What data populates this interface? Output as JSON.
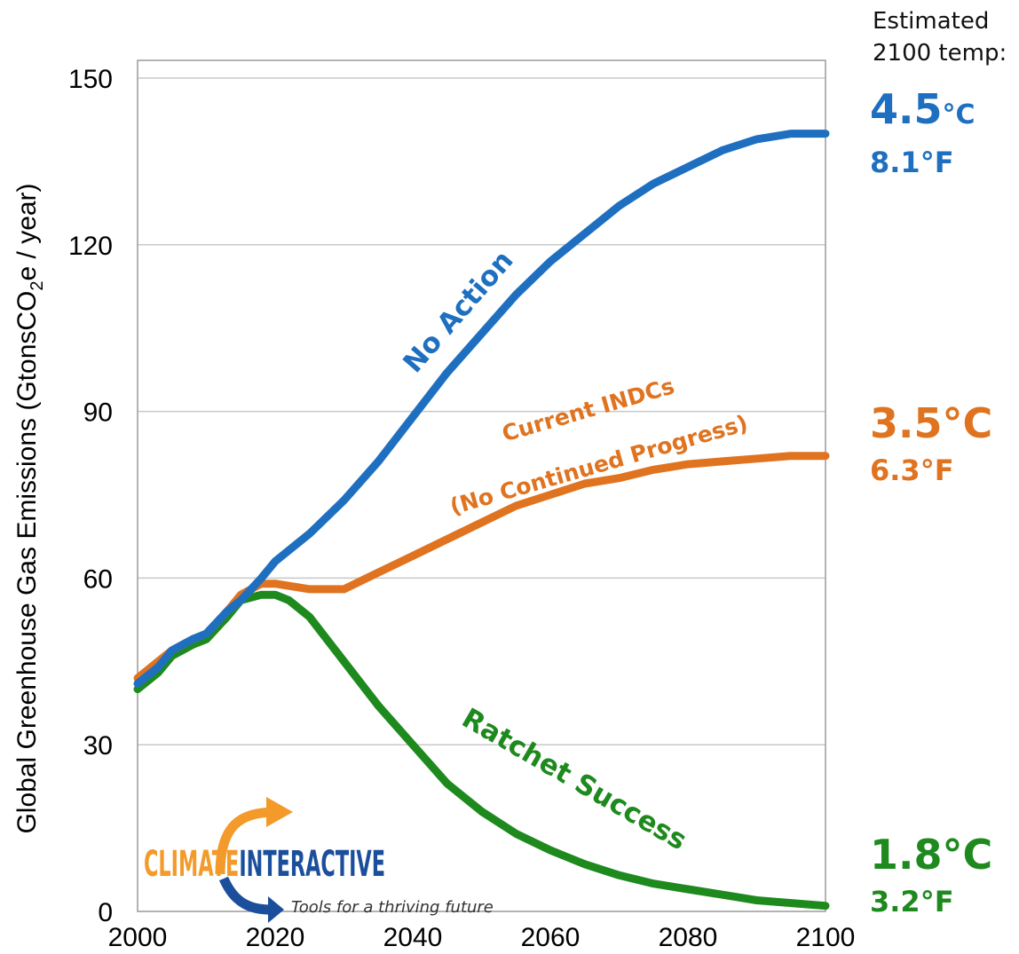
{
  "chart_data": {
    "type": "line",
    "title": "",
    "xlabel": "",
    "ylabel": "Global Greenhouse Gas Emissions  (GtonsCO2e / year)",
    "ylabel_parts": {
      "pre": "Global Greenhouse Gas Emissions  (GtonsCO",
      "sub": "2",
      "post": "e / year)"
    },
    "xlim": [
      2000,
      2100
    ],
    "ylim": [
      0,
      150
    ],
    "x_ticks": [
      "2000",
      "2020",
      "2040",
      "2060",
      "2080",
      "2100"
    ],
    "y_ticks": [
      "0",
      "30",
      "60",
      "90",
      "120",
      "150"
    ],
    "grid": "horizontal",
    "series": [
      {
        "name": "No Action",
        "color": "#1f6fc1",
        "x": [
          2000,
          2003,
          2005,
          2008,
          2010,
          2013,
          2015,
          2018,
          2020,
          2025,
          2030,
          2035,
          2040,
          2045,
          2050,
          2055,
          2060,
          2065,
          2070,
          2075,
          2080,
          2085,
          2090,
          2095,
          2100
        ],
        "y": [
          41,
          44,
          47,
          49,
          50,
          54,
          56,
          60,
          63,
          68,
          74,
          81,
          89,
          97,
          104,
          111,
          117,
          122,
          127,
          131,
          134,
          137,
          139,
          140,
          140
        ]
      },
      {
        "name": "Current INDCs (No Continued Progress)",
        "color": "#e0731f",
        "x": [
          2000,
          2003,
          2005,
          2008,
          2010,
          2013,
          2015,
          2018,
          2020,
          2025,
          2030,
          2035,
          2040,
          2045,
          2050,
          2055,
          2060,
          2065,
          2070,
          2075,
          2080,
          2085,
          2090,
          2095,
          2100
        ],
        "y": [
          42,
          45,
          47,
          49,
          50,
          54,
          57,
          59,
          59,
          58,
          58,
          61,
          64,
          67,
          70,
          73,
          75,
          77,
          78,
          79.5,
          80.5,
          81,
          81.5,
          82,
          82
        ]
      },
      {
        "name": "Ratchet Success",
        "color": "#1e8a1e",
        "x": [
          2000,
          2003,
          2005,
          2008,
          2010,
          2013,
          2015,
          2018,
          2020,
          2022,
          2025,
          2030,
          2035,
          2040,
          2045,
          2050,
          2055,
          2060,
          2065,
          2070,
          2075,
          2080,
          2085,
          2090,
          2095,
          2100
        ],
        "y": [
          40,
          43,
          46,
          48,
          49,
          53,
          56,
          57,
          57,
          56,
          53,
          45,
          37,
          30,
          23,
          18,
          14,
          11,
          8.5,
          6.5,
          5,
          4,
          3,
          2,
          1.5,
          1
        ]
      }
    ],
    "annotations": [
      {
        "text": "No Action",
        "color": "#1f6fc1"
      },
      {
        "line1": "Current INDCs",
        "line2": "(No Continued Progress)",
        "color": "#e0731f"
      },
      {
        "text": "Ratchet Success",
        "color": "#1e8a1e"
      }
    ]
  },
  "sidebar": {
    "heading_line1": "Estimated",
    "heading_line2": "2100 temp:",
    "temps": [
      {
        "c_value": "4.5",
        "c_unit": "°C",
        "f": "8.1°F",
        "color": "#1f6fc1"
      },
      {
        "c_value": "3.5°C",
        "f": "6.3°F",
        "color": "#e0731f"
      },
      {
        "c_value": "1.8°C",
        "f": "3.2°F",
        "color": "#1e8a1e"
      }
    ]
  },
  "logo": {
    "word1": "CLIMATE",
    "word2": "INTERACTIVE",
    "tagline": "Tools for a thriving future",
    "colors": {
      "orange": "#f39a2b",
      "blue": "#1b4f9c"
    }
  }
}
